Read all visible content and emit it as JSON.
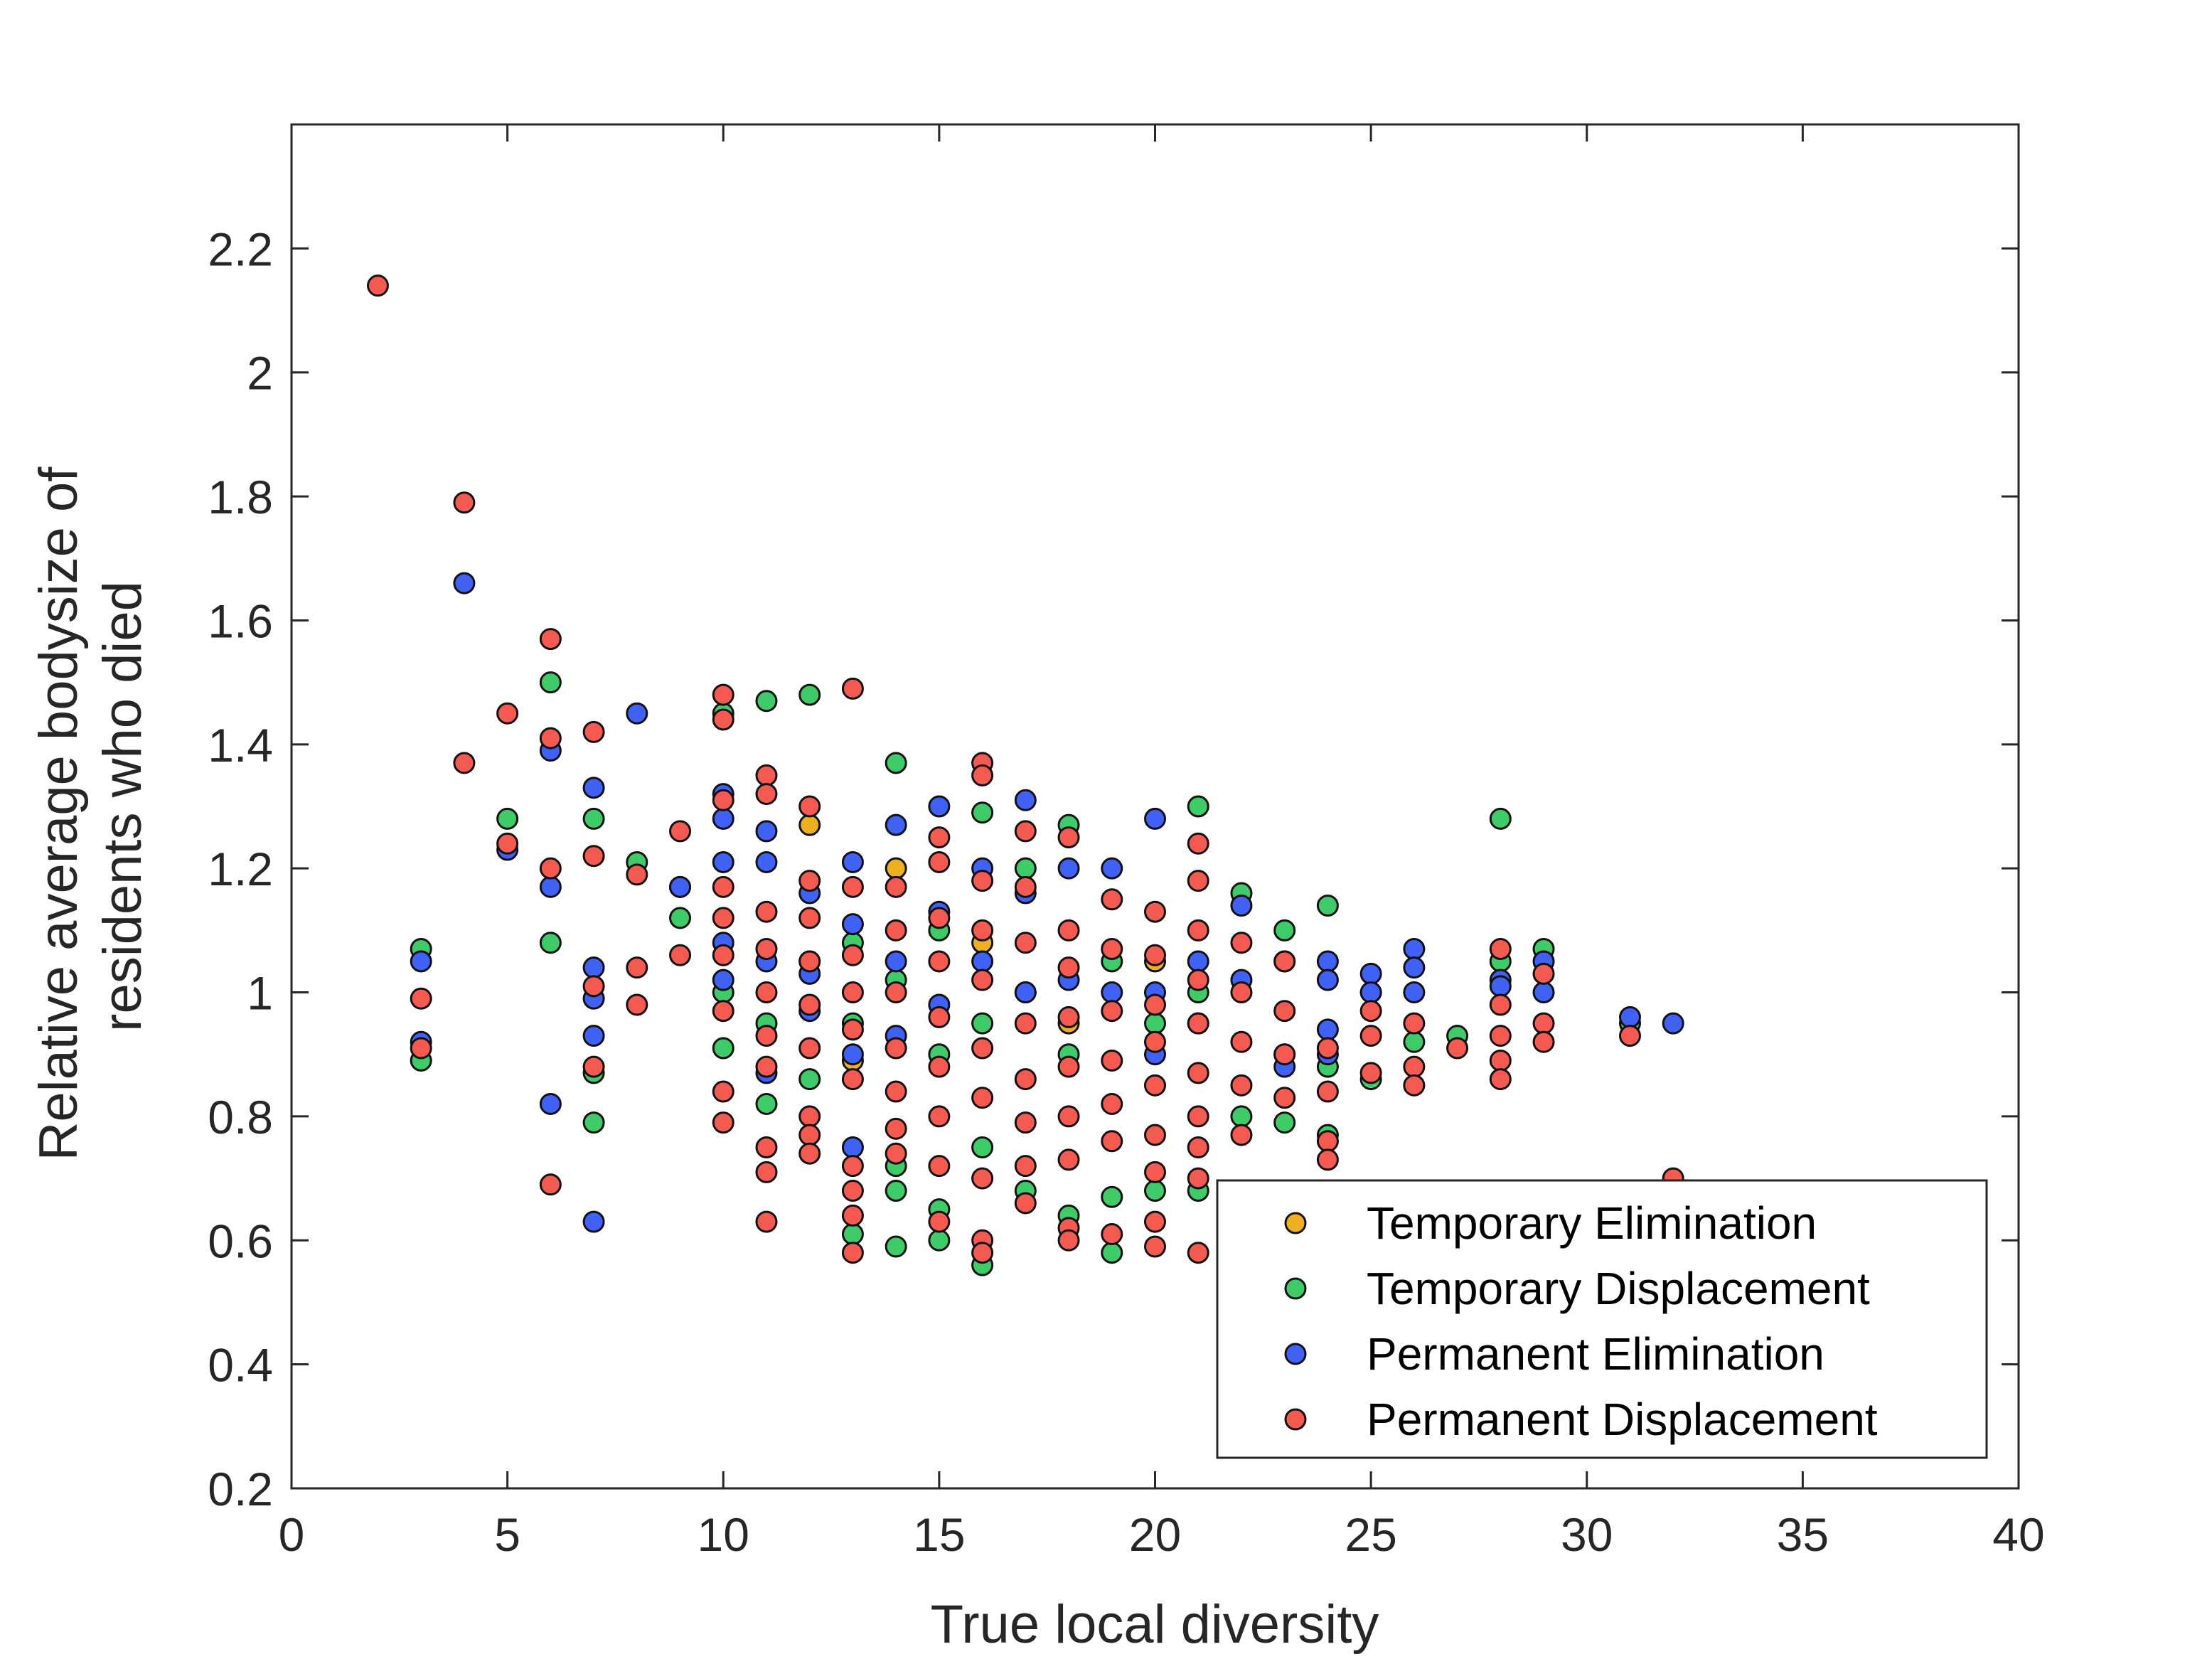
{
  "chart_data": {
    "type": "scatter",
    "title": "",
    "xlabel": "True local diversity",
    "ylabel_lines": [
      "Relative average bodysize of",
      "residents who died"
    ],
    "xlim": [
      0,
      40
    ],
    "ylim": [
      0.2,
      2.4
    ],
    "xticks": [
      {
        "value": 0,
        "label": "0"
      },
      {
        "value": 5,
        "label": "5"
      },
      {
        "value": 10,
        "label": "10"
      },
      {
        "value": 15,
        "label": "15"
      },
      {
        "value": 20,
        "label": "20"
      },
      {
        "value": 25,
        "label": "25"
      },
      {
        "value": 30,
        "label": "30"
      },
      {
        "value": 35,
        "label": "35"
      },
      {
        "value": 40,
        "label": "40"
      }
    ],
    "yticks": [
      {
        "value": 0.2,
        "label": "0.2"
      },
      {
        "value": 0.4,
        "label": "0.4"
      },
      {
        "value": 0.6,
        "label": "0.6"
      },
      {
        "value": 0.8,
        "label": "0.8"
      },
      {
        "value": 1.0,
        "label": "1"
      },
      {
        "value": 1.2,
        "label": "1.2"
      },
      {
        "value": 1.4,
        "label": "1.4"
      },
      {
        "value": 1.6,
        "label": "1.6"
      },
      {
        "value": 1.8,
        "label": "1.8"
      },
      {
        "value": 2.0,
        "label": "2"
      },
      {
        "value": 2.2,
        "label": "2.2"
      }
    ],
    "grid": false,
    "legend_position": "bottom-right",
    "series": [
      {
        "name": "Temporary Elimination",
        "color": "#edb120",
        "points": [
          [
            12,
            1.27
          ],
          [
            14,
            1.2
          ],
          [
            13,
            0.89
          ],
          [
            16,
            1.08
          ],
          [
            18,
            0.95
          ],
          [
            20,
            1.05
          ]
        ]
      },
      {
        "name": "Temporary Displacement",
        "color": "#3dcc67",
        "points": [
          [
            3,
            1.07
          ],
          [
            3,
            0.89
          ],
          [
            5,
            1.28
          ],
          [
            6,
            1.5
          ],
          [
            6,
            1.08
          ],
          [
            7,
            1.28
          ],
          [
            7,
            0.87
          ],
          [
            7,
            0.79
          ],
          [
            8,
            1.21
          ],
          [
            9,
            1.17
          ],
          [
            9,
            1.12
          ],
          [
            10,
            1.45
          ],
          [
            10,
            0.91
          ],
          [
            10,
            1.0
          ],
          [
            11,
            1.47
          ],
          [
            11,
            0.82
          ],
          [
            11,
            0.95
          ],
          [
            12,
            1.48
          ],
          [
            12,
            0.86
          ],
          [
            12,
            1.05
          ],
          [
            13,
            1.08
          ],
          [
            13,
            0.61
          ],
          [
            13,
            0.95
          ],
          [
            14,
            1.37
          ],
          [
            14,
            0.72
          ],
          [
            14,
            0.68
          ],
          [
            14,
            0.59
          ],
          [
            14,
            1.02
          ],
          [
            15,
            0.6
          ],
          [
            15,
            0.65
          ],
          [
            15,
            0.9
          ],
          [
            15,
            1.1
          ],
          [
            16,
            1.29
          ],
          [
            16,
            0.56
          ],
          [
            16,
            0.75
          ],
          [
            16,
            0.95
          ],
          [
            17,
            0.68
          ],
          [
            17,
            1.0
          ],
          [
            17,
            1.2
          ],
          [
            18,
            1.27
          ],
          [
            18,
            0.64
          ],
          [
            18,
            0.9
          ],
          [
            19,
            1.05
          ],
          [
            19,
            0.58
          ],
          [
            19,
            0.67
          ],
          [
            20,
            0.68
          ],
          [
            20,
            0.95
          ],
          [
            21,
            1.3
          ],
          [
            21,
            0.68
          ],
          [
            21,
            1.0
          ],
          [
            22,
            1.16
          ],
          [
            22,
            0.8
          ],
          [
            23,
            1.1
          ],
          [
            23,
            0.79
          ],
          [
            23,
            0.9
          ],
          [
            24,
            1.14
          ],
          [
            24,
            0.77
          ],
          [
            24,
            0.88
          ],
          [
            25,
            0.86
          ],
          [
            25,
            1.0
          ],
          [
            26,
            0.92
          ],
          [
            27,
            0.93
          ],
          [
            28,
            1.28
          ],
          [
            28,
            1.05
          ],
          [
            29,
            1.07
          ],
          [
            31,
            0.95
          ]
        ]
      },
      {
        "name": "Permanent Elimination",
        "color": "#4061f5",
        "points": [
          [
            3,
            1.05
          ],
          [
            3,
            0.92
          ],
          [
            4,
            1.66
          ],
          [
            5,
            1.23
          ],
          [
            6,
            1.39
          ],
          [
            6,
            1.17
          ],
          [
            6,
            0.82
          ],
          [
            7,
            1.33
          ],
          [
            7,
            1.04
          ],
          [
            7,
            0.93
          ],
          [
            7,
            0.99
          ],
          [
            7,
            0.63
          ],
          [
            8,
            1.45
          ],
          [
            9,
            1.17
          ],
          [
            10,
            1.32
          ],
          [
            10,
            1.28
          ],
          [
            10,
            1.21
          ],
          [
            10,
            1.08
          ],
          [
            10,
            1.02
          ],
          [
            11,
            1.26
          ],
          [
            11,
            1.21
          ],
          [
            11,
            1.05
          ],
          [
            11,
            0.87
          ],
          [
            12,
            1.16
          ],
          [
            12,
            1.03
          ],
          [
            12,
            0.97
          ],
          [
            13,
            1.21
          ],
          [
            13,
            1.11
          ],
          [
            13,
            0.75
          ],
          [
            13,
            0.9
          ],
          [
            14,
            1.27
          ],
          [
            14,
            0.93
          ],
          [
            14,
            1.05
          ],
          [
            15,
            1.3
          ],
          [
            15,
            1.13
          ],
          [
            15,
            0.98
          ],
          [
            16,
            1.2
          ],
          [
            16,
            1.05
          ],
          [
            17,
            1.31
          ],
          [
            17,
            1.16
          ],
          [
            17,
            1.0
          ],
          [
            18,
            1.2
          ],
          [
            18,
            1.02
          ],
          [
            19,
            1.2
          ],
          [
            19,
            1.0
          ],
          [
            20,
            1.28
          ],
          [
            20,
            1.0
          ],
          [
            20,
            0.9
          ],
          [
            21,
            1.05
          ],
          [
            21,
            0.95
          ],
          [
            22,
            1.14
          ],
          [
            22,
            1.02
          ],
          [
            23,
            1.05
          ],
          [
            23,
            0.88
          ],
          [
            24,
            1.05
          ],
          [
            24,
            1.02
          ],
          [
            24,
            0.94
          ],
          [
            24,
            0.9
          ],
          [
            25,
            1.03
          ],
          [
            25,
            1.0
          ],
          [
            26,
            1.07
          ],
          [
            26,
            1.04
          ],
          [
            26,
            1.0
          ],
          [
            28,
            1.02
          ],
          [
            28,
            1.01
          ],
          [
            29,
            1.05
          ],
          [
            29,
            1.0
          ],
          [
            31,
            0.96
          ],
          [
            32,
            0.95
          ]
        ]
      },
      {
        "name": "Permanent Displacement",
        "color": "#f55a51",
        "points": [
          [
            2,
            2.14
          ],
          [
            3,
            0.99
          ],
          [
            3,
            0.91
          ],
          [
            4,
            1.79
          ],
          [
            4,
            1.37
          ],
          [
            5,
            1.45
          ],
          [
            5,
            1.24
          ],
          [
            6,
            1.57
          ],
          [
            6,
            1.41
          ],
          [
            6,
            1.2
          ],
          [
            6,
            0.69
          ],
          [
            7,
            1.42
          ],
          [
            7,
            1.22
          ],
          [
            7,
            1.01
          ],
          [
            7,
            0.88
          ],
          [
            8,
            1.19
          ],
          [
            8,
            1.04
          ],
          [
            8,
            0.98
          ],
          [
            9,
            1.26
          ],
          [
            9,
            1.06
          ],
          [
            10,
            1.48
          ],
          [
            10,
            1.44
          ],
          [
            10,
            1.31
          ],
          [
            10,
            1.17
          ],
          [
            10,
            1.12
          ],
          [
            10,
            1.06
          ],
          [
            10,
            0.97
          ],
          [
            10,
            0.84
          ],
          [
            10,
            0.79
          ],
          [
            11,
            1.35
          ],
          [
            11,
            1.32
          ],
          [
            11,
            1.13
          ],
          [
            11,
            1.07
          ],
          [
            11,
            1.0
          ],
          [
            11,
            0.93
          ],
          [
            11,
            0.88
          ],
          [
            11,
            0.75
          ],
          [
            11,
            0.71
          ],
          [
            11,
            0.63
          ],
          [
            12,
            1.3
          ],
          [
            12,
            1.18
          ],
          [
            12,
            1.12
          ],
          [
            12,
            1.05
          ],
          [
            12,
            0.98
          ],
          [
            12,
            0.91
          ],
          [
            12,
            0.8
          ],
          [
            12,
            0.77
          ],
          [
            12,
            0.74
          ],
          [
            13,
            1.49
          ],
          [
            13,
            1.17
          ],
          [
            13,
            1.06
          ],
          [
            13,
            1.0
          ],
          [
            13,
            0.94
          ],
          [
            13,
            0.86
          ],
          [
            13,
            0.72
          ],
          [
            13,
            0.68
          ],
          [
            13,
            0.64
          ],
          [
            13,
            0.58
          ],
          [
            14,
            1.17
          ],
          [
            14,
            1.1
          ],
          [
            14,
            1.0
          ],
          [
            14,
            0.91
          ],
          [
            14,
            0.84
          ],
          [
            14,
            0.78
          ],
          [
            14,
            0.74
          ],
          [
            15,
            1.25
          ],
          [
            15,
            1.21
          ],
          [
            15,
            1.12
          ],
          [
            15,
            1.05
          ],
          [
            15,
            0.96
          ],
          [
            15,
            0.88
          ],
          [
            15,
            0.8
          ],
          [
            15,
            0.72
          ],
          [
            15,
            0.63
          ],
          [
            16,
            1.37
          ],
          [
            16,
            1.35
          ],
          [
            16,
            1.18
          ],
          [
            16,
            1.1
          ],
          [
            16,
            1.02
          ],
          [
            16,
            0.91
          ],
          [
            16,
            0.83
          ],
          [
            16,
            0.7
          ],
          [
            16,
            0.6
          ],
          [
            16,
            0.58
          ],
          [
            17,
            1.26
          ],
          [
            17,
            1.17
          ],
          [
            17,
            1.08
          ],
          [
            17,
            0.95
          ],
          [
            17,
            0.86
          ],
          [
            17,
            0.79
          ],
          [
            17,
            0.72
          ],
          [
            17,
            0.66
          ],
          [
            18,
            1.25
          ],
          [
            18,
            1.1
          ],
          [
            18,
            1.04
          ],
          [
            18,
            0.96
          ],
          [
            18,
            0.88
          ],
          [
            18,
            0.8
          ],
          [
            18,
            0.73
          ],
          [
            18,
            0.62
          ],
          [
            18,
            0.6
          ],
          [
            19,
            1.15
          ],
          [
            19,
            1.07
          ],
          [
            19,
            0.97
          ],
          [
            19,
            0.89
          ],
          [
            19,
            0.82
          ],
          [
            19,
            0.76
          ],
          [
            19,
            0.61
          ],
          [
            20,
            1.13
          ],
          [
            20,
            1.06
          ],
          [
            20,
            0.98
          ],
          [
            20,
            0.92
          ],
          [
            20,
            0.85
          ],
          [
            20,
            0.77
          ],
          [
            20,
            0.71
          ],
          [
            20,
            0.63
          ],
          [
            20,
            0.59
          ],
          [
            21,
            1.24
          ],
          [
            21,
            1.18
          ],
          [
            21,
            1.1
          ],
          [
            21,
            1.02
          ],
          [
            21,
            0.95
          ],
          [
            21,
            0.87
          ],
          [
            21,
            0.8
          ],
          [
            21,
            0.75
          ],
          [
            21,
            0.7
          ],
          [
            21,
            0.58
          ],
          [
            22,
            1.08
          ],
          [
            22,
            1.0
          ],
          [
            22,
            0.92
          ],
          [
            22,
            0.85
          ],
          [
            22,
            0.77
          ],
          [
            23,
            1.05
          ],
          [
            23,
            0.97
          ],
          [
            23,
            0.9
          ],
          [
            23,
            0.83
          ],
          [
            24,
            0.91
          ],
          [
            24,
            0.84
          ],
          [
            24,
            0.76
          ],
          [
            24,
            0.73
          ],
          [
            25,
            0.97
          ],
          [
            25,
            0.93
          ],
          [
            25,
            0.87
          ],
          [
            26,
            0.95
          ],
          [
            26,
            0.88
          ],
          [
            26,
            0.85
          ],
          [
            27,
            0.91
          ],
          [
            28,
            1.07
          ],
          [
            28,
            0.98
          ],
          [
            28,
            0.93
          ],
          [
            28,
            0.89
          ],
          [
            28,
            0.86
          ],
          [
            29,
            1.03
          ],
          [
            29,
            0.95
          ],
          [
            29,
            0.92
          ],
          [
            31,
            0.93
          ],
          [
            32,
            0.7
          ]
        ]
      }
    ]
  }
}
